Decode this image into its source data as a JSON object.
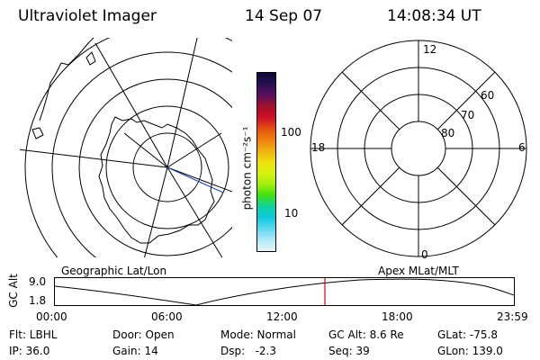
{
  "header": {
    "instrument": "Ultraviolet Imager",
    "date": "14 Sep 07",
    "time": "14:08:34 UT"
  },
  "colorbar": {
    "unit_label": "photon cm⁻²s⁻¹",
    "ticks": [
      "100",
      "10"
    ],
    "colors": [
      "#0a0a3a",
      "#2a1050",
      "#5a1060",
      "#a0102a",
      "#d0102a",
      "#e05010",
      "#f08010",
      "#f0b010",
      "#f0e010",
      "#d8f010",
      "#a0f010",
      "#40e010",
      "#10d0a0",
      "#10c8e0",
      "#60d8f0",
      "#b0e8f8",
      "#e8f4f8"
    ]
  },
  "left_panel": {
    "caption": "Geographic Lat/Lon"
  },
  "right_panel": {
    "caption": "Apex MLat/MLT",
    "mlt_labels": {
      "top": "12",
      "bottom": "0",
      "left": "18",
      "right": "6"
    },
    "lat_labels": [
      "60",
      "70",
      "80"
    ]
  },
  "altitude_plot": {
    "ylabel": "GC Alt",
    "ymax_label": "9.0",
    "ymin_label": "1.8",
    "x_ticks": [
      "00:00",
      "06:00",
      "12:00",
      "18:00",
      "23:59"
    ],
    "marker_color": "#e00000"
  },
  "status": {
    "filter": "Flt: LBHL",
    "ip": "IP: 36.0",
    "door": "Door: Open",
    "gain": "Gain: 14",
    "mode": "Mode: Normal",
    "dsp": "Dsp:   -2.3",
    "gc_alt": "GC Alt: 8.6 Re",
    "seq": "Seq: 39",
    "glat": "GLat: -75.8",
    "glon": "GLon: 139.0"
  }
}
